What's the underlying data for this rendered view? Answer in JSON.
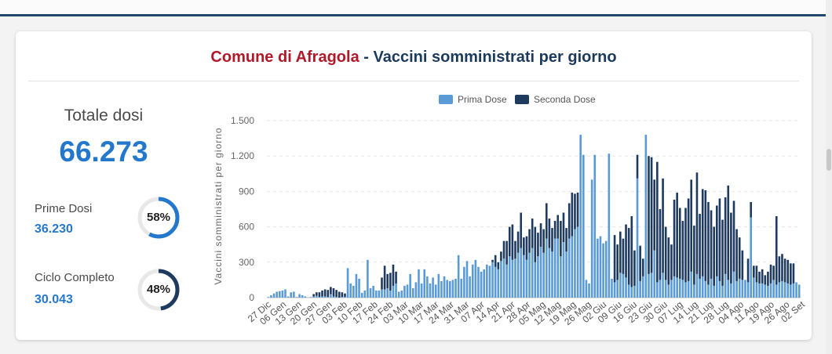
{
  "header": {
    "title_town": "Comune di Afragola",
    "title_rest": "- Vaccini somministrati per giorno"
  },
  "summary": {
    "totale_label": "Totale dosi",
    "totale_value": "66.273",
    "prime_label": "Prime Dosi",
    "prime_value": "36.230",
    "prime_pct": "58%",
    "prime_fraction": 0.58,
    "ciclo_label": "Ciclo Completo",
    "ciclo_value": "30.043",
    "ciclo_pct": "48%",
    "ciclo_fraction": 0.48
  },
  "colors": {
    "prima": "#5b9bd5",
    "seconda": "#1f3a5f",
    "gauge_prime": "#2478cc",
    "gauge_ciclo": "#1f3a5f",
    "gauge_track": "#e8e8e8"
  },
  "chart_data": {
    "type": "bar",
    "stacked": true,
    "ylabel": "Vaccini somministrati per giorno",
    "ylim": [
      0,
      1500
    ],
    "yticks": [
      0,
      300,
      600,
      900,
      1200,
      1500
    ],
    "ytick_labels": [
      "0",
      "300",
      "600",
      "900",
      "1.200",
      "1.500"
    ],
    "legend": [
      "Prima Dose",
      "Seconda Dose"
    ],
    "legend_position": "top",
    "grid": true,
    "xtick_labels": [
      "27 Dic",
      "06 Gen",
      "13 Gen",
      "20 Gen",
      "27 Gen",
      "03 Feb",
      "10 Feb",
      "17 Feb",
      "24 Feb",
      "03 Mar",
      "10 Mar",
      "17 Mar",
      "24 Mar",
      "31 Mar",
      "07 Apr",
      "14 Apr",
      "21 Apr",
      "28 Apr",
      "05 Mag",
      "12 Mag",
      "19 Mag",
      "26 Mag",
      "02 Giu",
      "09 Giu",
      "16 Giu",
      "23 Giu",
      "30 Giu",
      "07 Lug",
      "14 Lug",
      "21 Lug",
      "28 Lug",
      "04 Ago",
      "11 Ago",
      "19 Ago",
      "26 Ago",
      "02 Set"
    ],
    "series": [
      {
        "name": "Prima Dose",
        "values": [
          5,
          20,
          35,
          50,
          55,
          60,
          70,
          10,
          45,
          50,
          5,
          30,
          20,
          10,
          0,
          5,
          10,
          15,
          5,
          10,
          10,
          5,
          30,
          10,
          5,
          0,
          5,
          5,
          250,
          120,
          100,
          200,
          160,
          40,
          60,
          320,
          80,
          100,
          60,
          60,
          70,
          70,
          80,
          60,
          100,
          120,
          50,
          60,
          100,
          110,
          200,
          80,
          130,
          240,
          120,
          240,
          180,
          120,
          170,
          110,
          200,
          140,
          180,
          150,
          140,
          150,
          160,
          360,
          160,
          260,
          310,
          180,
          280,
          320,
          260,
          220,
          240,
          280,
          270,
          300,
          260,
          240,
          310,
          330,
          280,
          350,
          320,
          330,
          380,
          420,
          360,
          320,
          380,
          420,
          300,
          350,
          430,
          380,
          500,
          420,
          390,
          500,
          500,
          350,
          470,
          390,
          500,
          520,
          580,
          600,
          1380,
          1210,
          150,
          120,
          1000,
          1210,
          500,
          520,
          460,
          480,
          1220,
          160,
          130,
          150,
          210,
          200,
          170,
          110,
          90,
          100,
          1010,
          140,
          180,
          1380,
          200,
          210,
          400,
          130,
          150,
          210,
          150,
          110,
          150,
          180,
          170,
          160,
          150,
          130,
          140,
          220,
          110,
          200,
          160,
          180,
          140,
          110,
          160,
          100,
          180,
          140,
          100,
          200,
          150,
          120,
          220,
          140,
          160,
          150,
          150,
          130,
          680,
          170,
          130,
          120,
          120,
          110,
          100,
          120,
          150,
          110,
          130,
          140,
          130,
          120,
          110,
          120,
          130,
          110
        ]
      },
      {
        "name": "Seconda Dose",
        "values": [
          0,
          0,
          0,
          0,
          0,
          0,
          0,
          0,
          0,
          0,
          0,
          0,
          0,
          0,
          0,
          0,
          20,
          30,
          40,
          50,
          60,
          60,
          60,
          70,
          60,
          50,
          40,
          30,
          0,
          0,
          0,
          0,
          0,
          0,
          0,
          0,
          0,
          0,
          0,
          0,
          100,
          200,
          120,
          150,
          180,
          100,
          0,
          0,
          0,
          0,
          0,
          0,
          0,
          0,
          0,
          0,
          0,
          0,
          0,
          0,
          0,
          0,
          0,
          0,
          0,
          0,
          0,
          0,
          0,
          0,
          0,
          0,
          0,
          0,
          0,
          0,
          0,
          0,
          0,
          20,
          100,
          60,
          80,
          150,
          200,
          250,
          300,
          150,
          180,
          300,
          150,
          200,
          200,
          250,
          300,
          200,
          200,
          200,
          300,
          250,
          200,
          150,
          200,
          300,
          250,
          200,
          300,
          370,
          300,
          290,
          0,
          0,
          0,
          0,
          0,
          0,
          0,
          0,
          0,
          0,
          0,
          0,
          400,
          300,
          350,
          300,
          450,
          480,
          600,
          300,
          200,
          300,
          150,
          0,
          1000,
          980,
          600,
          1020,
          600,
          800,
          450,
          400,
          300,
          650,
          720,
          600,
          500,
          630,
          700,
          780,
          500,
          860,
          550,
          740,
          770,
          700,
          580,
          500,
          600,
          700,
          560,
          650,
          800,
          600,
          600,
          440,
          350,
          250,
          0,
          200,
          130,
          100,
          140,
          100,
          120,
          80,
          120,
          160,
          120,
          580,
          220,
          230,
          200,
          200,
          180,
          170
        ]
      }
    ]
  }
}
